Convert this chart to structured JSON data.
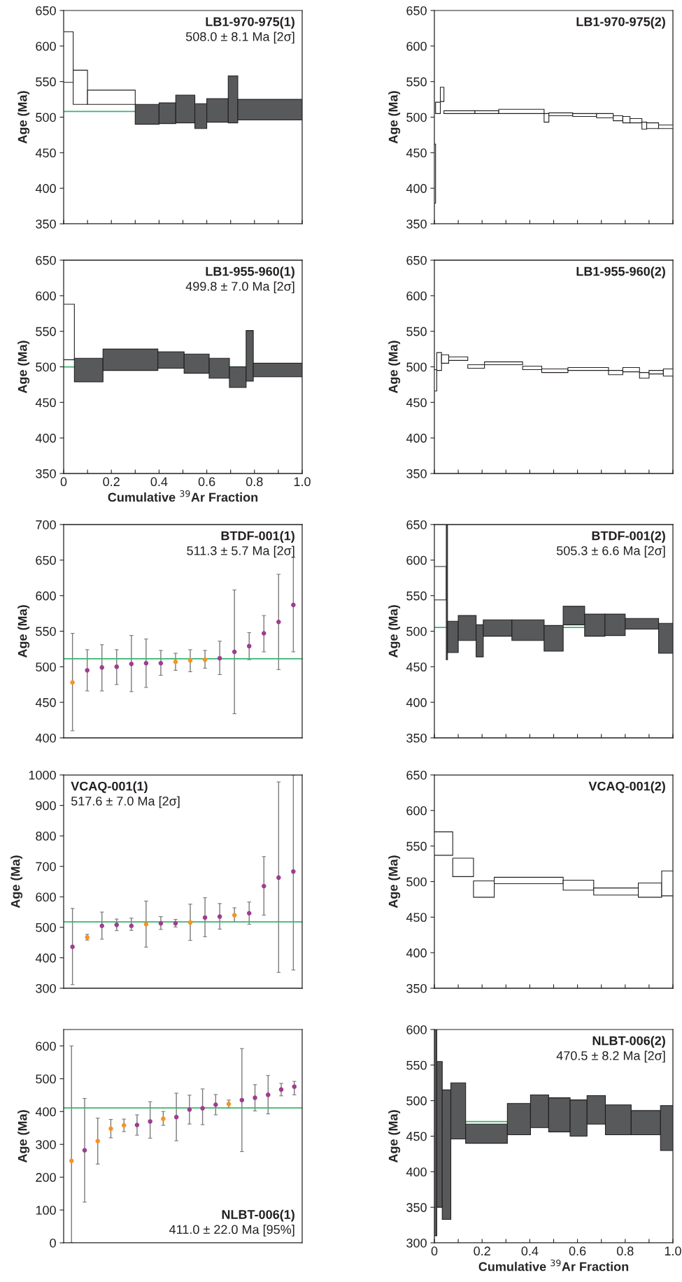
{
  "chart_data": [
    {
      "type": "histogram",
      "bins": [
        0,
        0.04,
        0.1,
        0.3,
        0.4,
        0.47,
        0.55,
        0.6,
        0.69,
        0.73,
        1.0
      ],
      "base": [
        549,
        518,
        518,
        490,
        491,
        492,
        484,
        493,
        492,
        496
      ],
      "values": [
        71,
        48,
        20,
        28,
        29,
        39,
        35,
        33,
        66,
        29
      ],
      "colors": [
        "#ffffff",
        "#ffffff",
        "#ffffff",
        "#58595b",
        "#58595b",
        "#58595b",
        "#58595b",
        "#58595b",
        "#58595b",
        "#58595b"
      ],
      "ylabel": "Age (Ma)",
      "xlim": [
        0,
        1
      ],
      "xticks": [
        {
          "value": 0,
          "label": null
        },
        {
          "value": 0.1,
          "label": null
        },
        {
          "value": 0.2,
          "label": null
        },
        {
          "value": 0.3,
          "label": null
        },
        {
          "value": 0.4,
          "label": null
        },
        {
          "value": 0.5,
          "label": null
        },
        {
          "value": 0.6,
          "label": null
        },
        {
          "value": 0.7,
          "label": null
        },
        {
          "value": 0.8,
          "label": null
        },
        {
          "value": 0.9,
          "label": null
        },
        {
          "value": 1.0,
          "label": null
        }
      ],
      "ylim": [
        350,
        650
      ],
      "yticks": [
        350,
        400,
        450,
        500,
        550,
        600,
        650
      ],
      "tick_labels": "y",
      "ref_lines": [
        {
          "axis": "y",
          "value": 508.0,
          "color": "#3cb371"
        }
      ],
      "annotations": [
        "LB1-970-975(1)",
        "508.0 ± 8.1 Ma [2σ]"
      ]
    },
    {
      "type": "histogram",
      "bins": [
        0,
        0.005,
        0.025,
        0.04,
        0.17,
        0.27,
        0.46,
        0.48,
        0.58,
        0.68,
        0.75,
        0.79,
        0.82,
        0.87,
        0.89,
        0.94,
        1.0
      ],
      "base": [
        379,
        505,
        522,
        505,
        505,
        505,
        493,
        502,
        501,
        499,
        495,
        492,
        492,
        483,
        484,
        484
      ],
      "values": [
        83,
        16,
        20,
        4,
        4,
        6,
        12,
        4,
        4,
        6,
        7,
        9,
        6,
        10,
        8,
        5
      ],
      "colors": [
        "#ffffff",
        "#ffffff",
        "#ffffff",
        "#ffffff",
        "#ffffff",
        "#ffffff",
        "#ffffff",
        "#ffffff",
        "#ffffff",
        "#ffffff",
        "#ffffff",
        "#ffffff",
        "#ffffff",
        "#ffffff",
        "#ffffff",
        "#ffffff"
      ],
      "ylabel": "Age (Ma)",
      "xlim": [
        0,
        1
      ],
      "xticks": [
        {
          "value": 0,
          "label": null
        },
        {
          "value": 0.1,
          "label": null
        },
        {
          "value": 0.2,
          "label": null
        },
        {
          "value": 0.3,
          "label": null
        },
        {
          "value": 0.4,
          "label": null
        },
        {
          "value": 0.5,
          "label": null
        },
        {
          "value": 0.6,
          "label": null
        },
        {
          "value": 0.7,
          "label": null
        },
        {
          "value": 0.8,
          "label": null
        },
        {
          "value": 0.9,
          "label": null
        },
        {
          "value": 1.0,
          "label": null
        }
      ],
      "ylim": [
        350,
        650
      ],
      "yticks": [
        350,
        400,
        450,
        500,
        550,
        600,
        650
      ],
      "tick_labels": "y",
      "annotations": [
        "LB1-970-975(2)"
      ]
    },
    {
      "type": "histogram",
      "bins": [
        0,
        0.045,
        0.165,
        0.395,
        0.505,
        0.61,
        0.695,
        0.765,
        0.795,
        1.0
      ],
      "base": [
        510,
        479,
        495,
        498,
        491,
        484,
        471,
        480,
        486
      ],
      "values": [
        78,
        33,
        30,
        23,
        27,
        28,
        29,
        71,
        19
      ],
      "colors": [
        "#ffffff",
        "#58595b",
        "#58595b",
        "#58595b",
        "#58595b",
        "#58595b",
        "#58595b",
        "#58595b",
        "#58595b"
      ],
      "xlabel": "Cumulative $^{39}$Ar Fraction",
      "ylabel": "Age (Ma)",
      "xlim": [
        0,
        1
      ],
      "xticks": [
        0,
        {
          "value": 0.1,
          "label": null
        },
        {
          "value": 0.2,
          "label": "0.2"
        },
        {
          "value": 0.3,
          "label": null
        },
        {
          "value": 0.4,
          "label": "0.4"
        },
        {
          "value": 0.5,
          "label": null
        },
        {
          "value": 0.6,
          "label": "0.6"
        },
        {
          "value": 0.7,
          "label": null
        },
        {
          "value": 0.8,
          "label": "0.8"
        },
        {
          "value": 0.9,
          "label": null
        },
        {
          "value": 1.0,
          "label": "1.0"
        }
      ],
      "ylim": [
        350,
        650
      ],
      "yticks": [
        350,
        400,
        450,
        500,
        550,
        600,
        650
      ],
      "ref_lines": [
        {
          "axis": "y",
          "value": 499.8,
          "color": "#3cb371"
        }
      ],
      "annotations": [
        "LB1-955-960(1)",
        "499.8 ± 7.0 Ma [2σ]"
      ]
    },
    {
      "type": "histogram",
      "bins": [
        0,
        0.01,
        0.03,
        0.06,
        0.14,
        0.21,
        0.37,
        0.45,
        0.56,
        0.73,
        0.79,
        0.86,
        0.9,
        0.96,
        1.0
      ],
      "base": [
        466,
        495,
        505,
        509,
        498,
        503,
        496,
        492,
        495,
        489,
        493,
        484,
        490,
        487
      ],
      "values": [
        30,
        25,
        12,
        5,
        5,
        4,
        5,
        5,
        4,
        6,
        6,
        8,
        5,
        10
      ],
      "colors": [
        "#ffffff",
        "#ffffff",
        "#ffffff",
        "#ffffff",
        "#ffffff",
        "#ffffff",
        "#ffffff",
        "#ffffff",
        "#ffffff",
        "#ffffff",
        "#ffffff",
        "#ffffff",
        "#ffffff",
        "#ffffff"
      ],
      "ylabel": "Age (Ma)",
      "xlim": [
        0,
        1
      ],
      "xticks": [
        {
          "value": 0,
          "label": null
        },
        {
          "value": 0.1,
          "label": null
        },
        {
          "value": 0.2,
          "label": null
        },
        {
          "value": 0.3,
          "label": null
        },
        {
          "value": 0.4,
          "label": null
        },
        {
          "value": 0.5,
          "label": null
        },
        {
          "value": 0.6,
          "label": null
        },
        {
          "value": 0.7,
          "label": null
        },
        {
          "value": 0.8,
          "label": null
        },
        {
          "value": 0.9,
          "label": null
        },
        {
          "value": 1.0,
          "label": null
        }
      ],
      "ylim": [
        350,
        650
      ],
      "yticks": [
        350,
        400,
        450,
        500,
        550,
        600,
        650
      ],
      "tick_labels": "y",
      "annotations": [
        "LB1-955-960(2)"
      ]
    },
    {
      "type": "scatter",
      "categories": [
        null,
        null,
        null,
        null,
        null,
        null,
        null,
        null,
        null,
        null,
        null,
        null,
        null,
        null,
        null,
        null
      ],
      "values": [
        478,
        495,
        499,
        500,
        504,
        505,
        505,
        507,
        509,
        510,
        512,
        521,
        529,
        547,
        563,
        587
      ],
      "errors": [
        [
          410,
          547
        ],
        [
          466,
          524
        ],
        [
          466,
          531
        ],
        [
          475,
          524
        ],
        [
          465,
          544
        ],
        [
          471,
          539
        ],
        [
          488,
          523
        ],
        [
          495,
          519
        ],
        [
          493,
          524
        ],
        [
          498,
          523
        ],
        [
          489,
          536
        ],
        [
          434,
          608
        ],
        [
          510,
          548
        ],
        [
          521,
          572
        ],
        [
          496,
          630
        ],
        [
          521,
          654
        ]
      ],
      "colors": [
        "#f7941d",
        "#9e3d8f",
        "#9e3d8f",
        "#9e3d8f",
        "#9e3d8f",
        "#9e3d8f",
        "#9e3d8f",
        "#f7941d",
        "#f7941d",
        "#f7941d",
        "#9e3d8f",
        "#9e3d8f",
        "#9e3d8f",
        "#9e3d8f",
        "#9e3d8f",
        "#9e3d8f"
      ],
      "marker": "circle",
      "ylabel": "Age (Ma)",
      "ylim": [
        400,
        700
      ],
      "yticks": [
        400,
        450,
        500,
        550,
        600,
        650,
        700
      ],
      "ref_lines": [
        {
          "axis": "y",
          "value": 511.3,
          "color": "#3cb371"
        }
      ],
      "annotations": [
        "BTDF-001(1)",
        "511.3 ± 5.7 Ma [2σ]"
      ]
    },
    {
      "type": "histogram",
      "bins": [
        0,
        0.05,
        0.055,
        0.1,
        0.175,
        0.205,
        0.325,
        0.46,
        0.54,
        0.63,
        0.715,
        0.8,
        0.94,
        1.0
      ],
      "base": [
        544,
        460,
        470,
        487,
        464,
        493,
        487,
        472,
        509,
        493,
        494,
        503,
        469
      ],
      "values": [
        47,
        190,
        44,
        35,
        45,
        23,
        29,
        36,
        26,
        31,
        30,
        15,
        42
      ],
      "colors": [
        "#ffffff",
        "#58595b",
        "#58595b",
        "#58595b",
        "#58595b",
        "#58595b",
        "#58595b",
        "#58595b",
        "#58595b",
        "#58595b",
        "#58595b",
        "#58595b",
        "#58595b"
      ],
      "ylabel": "Age (Ma)",
      "xlim": [
        0,
        1
      ],
      "xticks": [
        {
          "value": 0,
          "label": null
        },
        {
          "value": 0.1,
          "label": null
        },
        {
          "value": 0.2,
          "label": null
        },
        {
          "value": 0.3,
          "label": null
        },
        {
          "value": 0.4,
          "label": null
        },
        {
          "value": 0.5,
          "label": null
        },
        {
          "value": 0.6,
          "label": null
        },
        {
          "value": 0.7,
          "label": null
        },
        {
          "value": 0.8,
          "label": null
        },
        {
          "value": 0.9,
          "label": null
        },
        {
          "value": 1.0,
          "label": null
        }
      ],
      "ylim": [
        350,
        650
      ],
      "yticks": [
        350,
        400,
        450,
        500,
        550,
        600,
        650
      ],
      "tick_labels": "y",
      "ref_lines": [
        {
          "axis": "y",
          "value": 505.3,
          "color": "#3cb371"
        }
      ],
      "annotations": [
        "BTDF-001(2)",
        "505.3 ± 6.6 Ma [2σ]"
      ]
    },
    {
      "type": "scatter",
      "categories": [
        null,
        null,
        null,
        null,
        null,
        null,
        null,
        null,
        null,
        null,
        null,
        null,
        null,
        null,
        null,
        null
      ],
      "values": [
        436,
        467,
        505,
        508,
        505,
        510,
        513,
        513,
        516,
        532,
        535,
        540,
        546,
        635,
        663,
        683
      ],
      "errors": [
        [
          312,
          562
        ],
        [
          458,
          477
        ],
        [
          461,
          550
        ],
        [
          489,
          527
        ],
        [
          490,
          530
        ],
        [
          435,
          586
        ],
        [
          493,
          535
        ],
        [
          501,
          526
        ],
        [
          457,
          576
        ],
        [
          469,
          597
        ],
        [
          494,
          578
        ],
        [
          517,
          564
        ],
        [
          510,
          583
        ],
        [
          540,
          732
        ],
        [
          352,
          977
        ],
        [
          360,
          1000
        ]
      ],
      "colors": [
        "#9e3d8f",
        "#f7941d",
        "#9e3d8f",
        "#9e3d8f",
        "#9e3d8f",
        "#f7941d",
        "#9e3d8f",
        "#9e3d8f",
        "#f7941d",
        "#9e3d8f",
        "#9e3d8f",
        "#f7941d",
        "#9e3d8f",
        "#9e3d8f",
        "#9e3d8f",
        "#9e3d8f"
      ],
      "marker": "circle",
      "ylabel": "Age (Ma)",
      "ylim": [
        300,
        1000
      ],
      "yticks": [
        300,
        400,
        500,
        600,
        700,
        800,
        900,
        1000
      ],
      "ref_lines": [
        {
          "axis": "y",
          "value": 517.6,
          "color": "#3cb371"
        }
      ],
      "annotations": [
        "VCAQ-001(1)",
        "517.6 ± 7.0 Ma [2σ]"
      ]
    },
    {
      "type": "histogram",
      "bins": [
        0,
        0.077,
        0.164,
        0.251,
        0.54,
        0.668,
        0.855,
        0.953,
        1.0
      ],
      "base": [
        537,
        507,
        478,
        497,
        488,
        481,
        478,
        480
      ],
      "values": [
        33,
        26,
        23,
        9,
        14,
        10,
        20,
        35
      ],
      "colors": [
        "#ffffff",
        "#ffffff",
        "#ffffff",
        "#ffffff",
        "#ffffff",
        "#ffffff",
        "#ffffff",
        "#ffffff"
      ],
      "ylabel": "Age (Ma)",
      "xlim": [
        0,
        1
      ],
      "xticks": [
        {
          "value": 0,
          "label": null
        },
        {
          "value": 0.1,
          "label": null
        },
        {
          "value": 0.2,
          "label": null
        },
        {
          "value": 0.3,
          "label": null
        },
        {
          "value": 0.4,
          "label": null
        },
        {
          "value": 0.5,
          "label": null
        },
        {
          "value": 0.6,
          "label": null
        },
        {
          "value": 0.7,
          "label": null
        },
        {
          "value": 0.8,
          "label": null
        },
        {
          "value": 0.9,
          "label": null
        },
        {
          "value": 1.0,
          "label": null
        }
      ],
      "ylim": [
        350,
        650
      ],
      "yticks": [
        350,
        400,
        450,
        500,
        550,
        600,
        650
      ],
      "tick_labels": "y",
      "annotations": [
        "VCAQ-001(2)"
      ]
    },
    {
      "type": "scatter",
      "categories": [
        null,
        null,
        null,
        null,
        null,
        null,
        null,
        null,
        null,
        null,
        null,
        null,
        null,
        null,
        null,
        null,
        null,
        null
      ],
      "values": [
        250,
        282,
        310,
        348,
        358,
        359,
        370,
        378,
        383,
        406,
        410,
        421,
        423,
        435,
        442,
        451,
        467,
        476
      ],
      "errors": [
        [
          0,
          600
        ],
        [
          124,
          440
        ],
        [
          240,
          380
        ],
        [
          320,
          376
        ],
        [
          339,
          377
        ],
        [
          328,
          390
        ],
        [
          319,
          430
        ],
        [
          358,
          400
        ],
        [
          311,
          456
        ],
        [
          362,
          450
        ],
        [
          360,
          469
        ],
        [
          390,
          452
        ],
        [
          410,
          435
        ],
        [
          278,
          592
        ],
        [
          402,
          482
        ],
        [
          393,
          510
        ],
        [
          448,
          486
        ],
        [
          451,
          492
        ]
      ],
      "colors": [
        "#f7941d",
        "#9e3d8f",
        "#f7941d",
        "#f7941d",
        "#f7941d",
        "#9e3d8f",
        "#9e3d8f",
        "#f7941d",
        "#9e3d8f",
        "#9e3d8f",
        "#9e3d8f",
        "#9e3d8f",
        "#f7941d",
        "#9e3d8f",
        "#9e3d8f",
        "#9e3d8f",
        "#9e3d8f",
        "#9e3d8f"
      ],
      "marker": "circle",
      "ylabel": "Age (Ma)",
      "ylim": [
        0,
        650
      ],
      "yticks": [
        0,
        100,
        200,
        300,
        400,
        500,
        600
      ],
      "ref_lines": [
        {
          "axis": "y",
          "value": 411.0,
          "color": "#3cb371"
        }
      ],
      "annotations": [
        "NLBT-006(1)",
        "411.0 ± 22.0 Ma [95%]"
      ]
    },
    {
      "type": "histogram",
      "bins": [
        0,
        0.01,
        0.033,
        0.069,
        0.131,
        0.306,
        0.403,
        0.479,
        0.569,
        0.64,
        0.717,
        0.825,
        0.948,
        1.0
      ],
      "base": [
        310,
        350,
        333,
        446,
        440,
        452,
        462,
        456,
        450,
        467,
        452,
        452,
        430
      ],
      "values": [
        290,
        205,
        182,
        79,
        27,
        44,
        46,
        48,
        51,
        40,
        42,
        34,
        63
      ],
      "colors": [
        "#58595b",
        "#58595b",
        "#58595b",
        "#58595b",
        "#58595b",
        "#58595b",
        "#58595b",
        "#58595b",
        "#58595b",
        "#58595b",
        "#58595b",
        "#58595b",
        "#58595b"
      ],
      "xlabel": "Cumulative $^{39}$Ar Fraction",
      "ylabel": "Age (Ma)",
      "xlim": [
        0,
        1
      ],
      "xticks": [
        0,
        {
          "value": 0.1,
          "label": null
        },
        {
          "value": 0.2,
          "label": "0.2"
        },
        {
          "value": 0.3,
          "label": null
        },
        {
          "value": 0.4,
          "label": "0.4"
        },
        {
          "value": 0.5,
          "label": null
        },
        {
          "value": 0.6,
          "label": "0.6"
        },
        {
          "value": 0.7,
          "label": null
        },
        {
          "value": 0.8,
          "label": "0.8"
        },
        {
          "value": 0.9,
          "label": null
        },
        {
          "value": 1.0,
          "label": "1.0"
        }
      ],
      "ylim": [
        300,
        600
      ],
      "yticks": [
        300,
        350,
        400,
        450,
        500,
        550,
        600
      ],
      "ref_lines": [
        {
          "axis": "y",
          "value": 470.5,
          "color": "#3cb371"
        }
      ],
      "annotations": [
        "NLBT-006(2)",
        "470.5 ± 8.2 Ma [2σ]"
      ]
    }
  ]
}
